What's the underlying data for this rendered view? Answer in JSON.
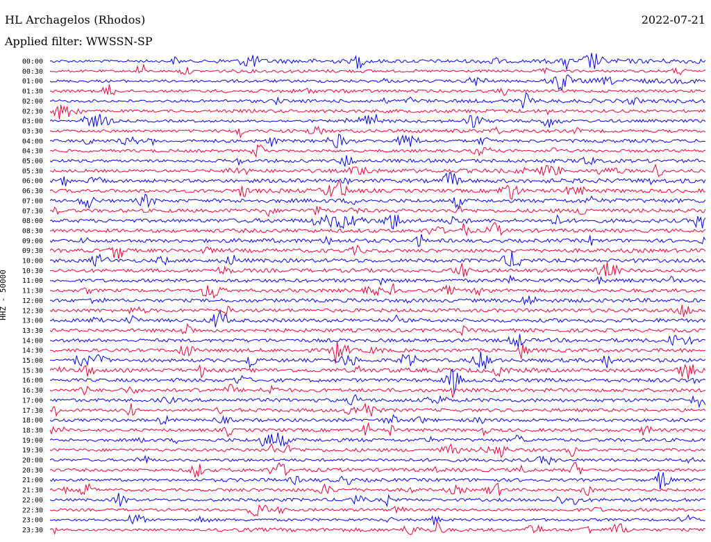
{
  "header": {
    "station": "HL Archagelos (Rhodos)",
    "date": "2022-07-21",
    "filter": "Applied filter: WWSSN-SP"
  },
  "chart_data": {
    "type": "line",
    "title": "HL Archagelos (Rhodos)",
    "ylabel": "HHZ - 50000",
    "xlabel": "",
    "trace_colors": [
      "#0000ee",
      "#ee0033"
    ],
    "tick_labels": [
      "00:00",
      "00:30",
      "01:00",
      "01:30",
      "02:00",
      "02:30",
      "03:00",
      "03:30",
      "04:00",
      "04:30",
      "05:00",
      "05:30",
      "06:00",
      "06:30",
      "07:00",
      "07:30",
      "08:00",
      "08:30",
      "09:00",
      "09:30",
      "10:00",
      "10:30",
      "11:00",
      "11:30",
      "12:00",
      "12:30",
      "13:00",
      "13:30",
      "14:00",
      "14:30",
      "15:00",
      "15:30",
      "16:00",
      "16:30",
      "17:00",
      "17:30",
      "18:00",
      "18:30",
      "19:00",
      "19:30",
      "20:00",
      "20:30",
      "21:00",
      "21:30",
      "22:00",
      "22:30",
      "23:00",
      "23:30"
    ],
    "minutes_per_line": 30,
    "series": [
      {
        "values": [
          0.3,
          0.9,
          0.6,
          1.0
        ]
      },
      {
        "values": [
          0.2,
          0.5,
          0.3,
          0.3
        ]
      },
      {
        "values": [
          0.3,
          0.4,
          0.3,
          1.0
        ]
      },
      {
        "values": [
          0.3,
          0.6,
          0.3,
          0.3
        ]
      },
      {
        "values": [
          0.3,
          0.5,
          0.6,
          0.7
        ]
      },
      {
        "values": [
          0.3,
          0.5,
          0.6,
          0.4
        ]
      },
      {
        "values": [
          0.3,
          0.3,
          0.5,
          0.4
        ]
      },
      {
        "values": [
          0.3,
          0.5,
          0.6,
          0.4
        ]
      },
      {
        "values": [
          0.4,
          0.5,
          0.4,
          0.5
        ]
      },
      {
        "values": [
          0.4,
          0.3,
          0.4,
          0.4
        ]
      },
      {
        "values": [
          0.4,
          0.5,
          0.6,
          0.6
        ]
      },
      {
        "values": [
          0.4,
          0.6,
          0.8,
          0.5
        ]
      },
      {
        "values": [
          0.5,
          0.6,
          0.7,
          0.9
        ]
      },
      {
        "values": [
          0.6,
          0.8,
          0.6,
          0.7
        ]
      },
      {
        "values": [
          0.5,
          0.7,
          0.6,
          0.8
        ]
      },
      {
        "values": [
          0.6,
          0.7,
          0.6,
          0.7
        ]
      },
      {
        "values": [
          0.6,
          0.8,
          0.7,
          0.7
        ]
      },
      {
        "values": [
          0.6,
          0.7,
          0.6,
          0.6
        ]
      },
      {
        "values": [
          0.6,
          0.8,
          0.6,
          0.6
        ]
      },
      {
        "values": [
          0.6,
          0.7,
          0.6,
          0.7
        ]
      },
      {
        "values": [
          0.6,
          0.7,
          0.6,
          0.6
        ]
      },
      {
        "values": [
          0.6,
          0.7,
          0.6,
          0.6
        ]
      },
      {
        "values": [
          0.5,
          0.6,
          0.6,
          0.7
        ]
      },
      {
        "values": [
          0.5,
          0.6,
          0.6,
          0.6
        ]
      },
      {
        "values": [
          0.5,
          0.6,
          0.6,
          0.7
        ]
      },
      {
        "values": [
          0.6,
          0.6,
          0.6,
          0.7
        ]
      },
      {
        "values": [
          0.5,
          0.6,
          0.6,
          0.7
        ]
      },
      {
        "values": [
          0.5,
          0.6,
          0.6,
          0.6
        ]
      },
      {
        "values": [
          0.5,
          0.6,
          0.6,
          0.7
        ]
      },
      {
        "values": [
          0.5,
          0.6,
          0.6,
          0.6
        ]
      },
      {
        "values": [
          0.5,
          0.6,
          0.6,
          0.7
        ]
      },
      {
        "values": [
          0.6,
          0.7,
          0.9,
          0.6
        ]
      },
      {
        "values": [
          0.5,
          0.6,
          0.6,
          0.7
        ]
      },
      {
        "values": [
          0.5,
          0.6,
          0.6,
          0.6
        ]
      },
      {
        "values": [
          0.5,
          0.6,
          0.6,
          0.6
        ]
      },
      {
        "values": [
          0.4,
          0.6,
          0.5,
          0.5
        ]
      },
      {
        "values": [
          0.4,
          0.5,
          0.5,
          0.5
        ]
      },
      {
        "values": [
          0.4,
          0.5,
          0.5,
          0.5
        ]
      },
      {
        "values": [
          0.4,
          0.6,
          0.5,
          0.5
        ]
      },
      {
        "values": [
          0.4,
          0.6,
          0.5,
          0.4
        ]
      },
      {
        "values": [
          0.3,
          0.4,
          0.5,
          0.4
        ]
      },
      {
        "values": [
          0.4,
          0.6,
          0.6,
          0.4
        ]
      },
      {
        "values": [
          0.3,
          0.6,
          0.5,
          0.4
        ]
      },
      {
        "values": [
          0.3,
          0.6,
          0.4,
          0.3
        ]
      },
      {
        "values": [
          0.3,
          0.5,
          0.4,
          0.6
        ]
      },
      {
        "values": [
          0.3,
          0.4,
          0.3,
          0.5
        ]
      },
      {
        "values": [
          0.2,
          0.3,
          0.3,
          0.3
        ]
      },
      {
        "values": [
          0.2,
          0.7,
          0.5,
          0.4
        ]
      }
    ]
  }
}
